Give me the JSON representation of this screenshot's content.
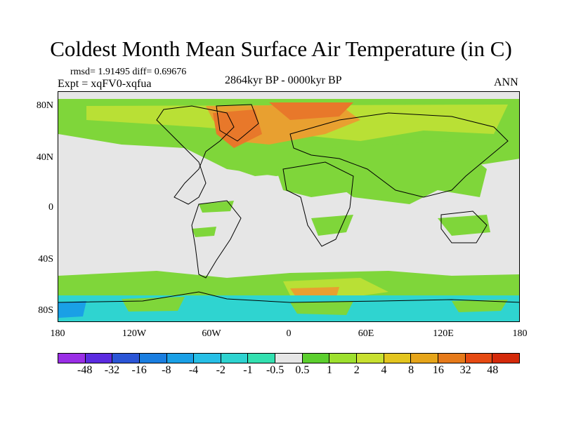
{
  "title": "Coldest Month Mean Surface Air Temperature (in C)",
  "stats": {
    "rmsd": "rmsd= 1.91495 diff= 0.69676",
    "expt": "Expt = xqFV0-xqfua"
  },
  "period": "2864kyr BP - 0000kyr BP",
  "season": "ANN",
  "lat_labels": [
    "80N",
    "40N",
    "0",
    "40S",
    "80S"
  ],
  "lon_labels": [
    "180",
    "120W",
    "60W",
    "0",
    "60E",
    "120E",
    "180"
  ],
  "colorbar": {
    "labels": [
      "-48",
      "-32",
      "-16",
      "-8",
      "-4",
      "-2",
      "-1",
      "-0.5",
      "0.5",
      "1",
      "2",
      "4",
      "8",
      "16",
      "32",
      "48"
    ],
    "colors": [
      "#9a2ee6",
      "#5b2be0",
      "#2b55d6",
      "#1a7ee0",
      "#1aa0e6",
      "#27bfe6",
      "#2ed3d0",
      "#33e0b0",
      "#e6e6e6",
      "#5ccf2e",
      "#9de02e",
      "#c8e030",
      "#e3c51f",
      "#e6a51a",
      "#e67a1a",
      "#e64a12",
      "#d42a0a"
    ]
  },
  "colors": {
    "land_green": "#7fd63a",
    "yellow_green": "#b9e035",
    "orange": "#e8a030",
    "warm": "#e8782a",
    "cyan": "#2fd4d0",
    "grey": "#e6e6e6"
  }
}
